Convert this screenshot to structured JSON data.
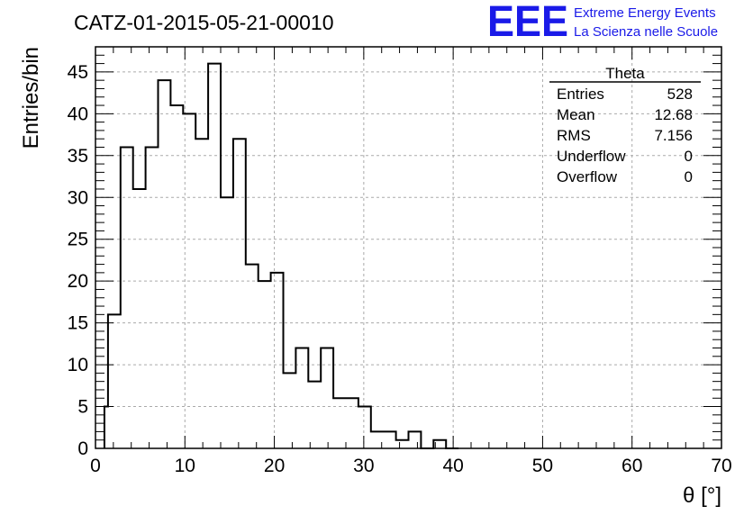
{
  "chart_data": {
    "type": "bar",
    "subtype": "histogram-step",
    "title": "CATZ-01-2015-05-21-00010",
    "xlabel": "θ [°]",
    "ylabel": "Entries/bin",
    "xlim": [
      0,
      70
    ],
    "ylim": [
      0,
      48
    ],
    "bin_width": 1.4,
    "x_ticks": [
      0,
      10,
      20,
      30,
      40,
      50,
      60,
      70
    ],
    "y_ticks": [
      0,
      5,
      10,
      15,
      20,
      25,
      30,
      35,
      40,
      45
    ],
    "grid": true,
    "bins": [
      {
        "x": 1.0,
        "value": 5
      },
      {
        "x": 1.4,
        "value": 16
      },
      {
        "x": 2.8,
        "value": 36
      },
      {
        "x": 4.2,
        "value": 31
      },
      {
        "x": 5.6,
        "value": 36
      },
      {
        "x": 7.0,
        "value": 44
      },
      {
        "x": 8.4,
        "value": 41
      },
      {
        "x": 9.8,
        "value": 40
      },
      {
        "x": 11.2,
        "value": 37
      },
      {
        "x": 12.6,
        "value": 46
      },
      {
        "x": 14.0,
        "value": 30
      },
      {
        "x": 15.4,
        "value": 37
      },
      {
        "x": 16.8,
        "value": 22
      },
      {
        "x": 18.2,
        "value": 20
      },
      {
        "x": 19.6,
        "value": 21
      },
      {
        "x": 21.0,
        "value": 9
      },
      {
        "x": 22.4,
        "value": 12
      },
      {
        "x": 23.8,
        "value": 8
      },
      {
        "x": 25.2,
        "value": 12
      },
      {
        "x": 26.6,
        "value": 6
      },
      {
        "x": 28.0,
        "value": 6
      },
      {
        "x": 29.4,
        "value": 5
      },
      {
        "x": 30.8,
        "value": 2
      },
      {
        "x": 32.2,
        "value": 2
      },
      {
        "x": 33.6,
        "value": 1
      },
      {
        "x": 35.0,
        "value": 2
      },
      {
        "x": 36.4,
        "value": 0
      },
      {
        "x": 37.8,
        "value": 1
      },
      {
        "x": 39.2,
        "value": 0
      }
    ],
    "stats_box": {
      "title": "Theta",
      "position": "top-right",
      "rows": [
        {
          "label": "Entries",
          "value": "528"
        },
        {
          "label": "Mean",
          "value": "12.68"
        },
        {
          "label": "RMS",
          "value": "7.156"
        },
        {
          "label": "Underflow",
          "value": "0"
        },
        {
          "label": "Overflow",
          "value": "0"
        }
      ]
    },
    "line_color": "#000000",
    "grid_color": "#aaaaaa"
  },
  "logo": {
    "mark": "EEE",
    "line1": "Extreme Energy Events",
    "line2": "La Scienza nelle Scuole",
    "color": "#1a1ae8"
  }
}
